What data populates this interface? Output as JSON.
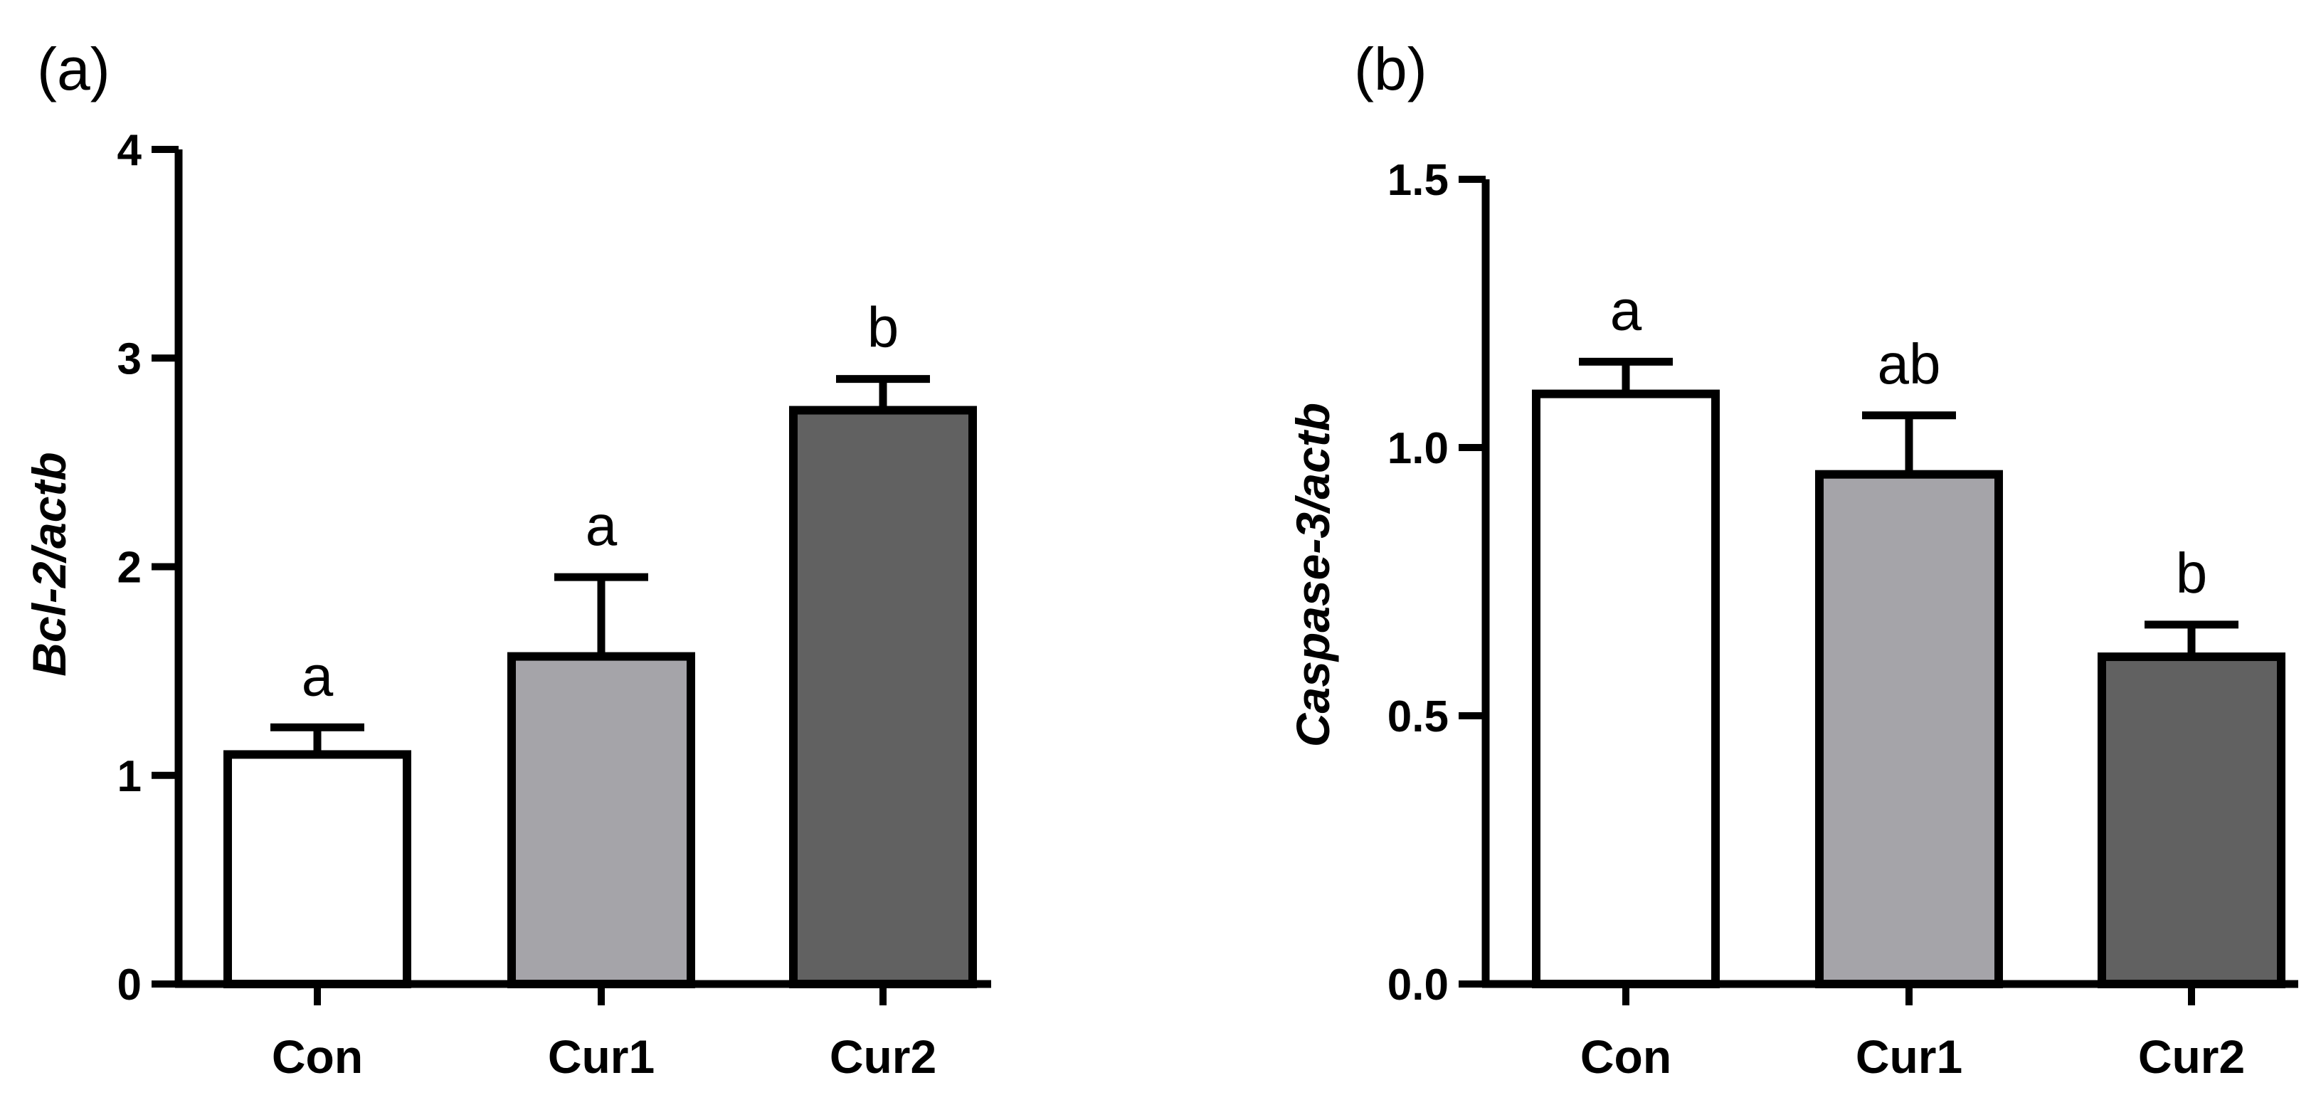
{
  "colors": {
    "con": "#ffffff",
    "cur1": "#a5a4a9",
    "cur2": "#616161",
    "stroke": "#000000"
  },
  "chart_data": [
    {
      "panel": "(a)",
      "type": "bar",
      "ylabel": "Bcl-2/actb",
      "categories": [
        "Con",
        "Cur1",
        "Cur2"
      ],
      "values": [
        1.1,
        1.57,
        2.75
      ],
      "errors": [
        0.13,
        0.38,
        0.15
      ],
      "significance": [
        "a",
        "a",
        "b"
      ],
      "ylim": [
        0,
        4
      ],
      "yticks": [
        0,
        1,
        2,
        3,
        4
      ],
      "ytick_labels": [
        "0",
        "1",
        "2",
        "3",
        "4"
      ]
    },
    {
      "panel": "(b)",
      "type": "bar",
      "ylabel": "Caspase-3/actb",
      "categories": [
        "Con",
        "Cur1",
        "Cur2"
      ],
      "values": [
        1.1,
        0.95,
        0.61
      ],
      "errors": [
        0.06,
        0.11,
        0.06
      ],
      "significance": [
        "a",
        "ab",
        "b"
      ],
      "ylim": [
        0,
        1.5
      ],
      "yticks": [
        0,
        0.5,
        1.0,
        1.5
      ],
      "ytick_labels": [
        "0.0",
        "0.5",
        "1.0",
        "1.5"
      ]
    }
  ]
}
